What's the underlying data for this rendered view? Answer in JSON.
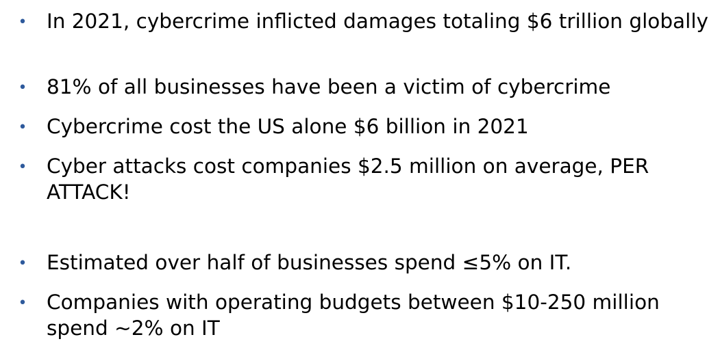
{
  "slide": {
    "bullet_glyph": "•",
    "bullet_color": "#2E5A9C",
    "items": [
      {
        "text": "In 2021, cybercrime inflicted damages totaling $6 trillion globally"
      },
      {
        "text": "81% of all businesses have been a victim of cybercrime"
      },
      {
        "text": "Cybercrime cost the US alone $6 billion in 2021"
      },
      {
        "text": "Cyber attacks cost companies $2.5 million on average, PER ATTACK!"
      },
      {
        "text": "Estimated over half of businesses spend ≤5% on IT."
      },
      {
        "text": "Companies with operating budgets between $10-250 million spend ~2% on IT"
      }
    ]
  }
}
